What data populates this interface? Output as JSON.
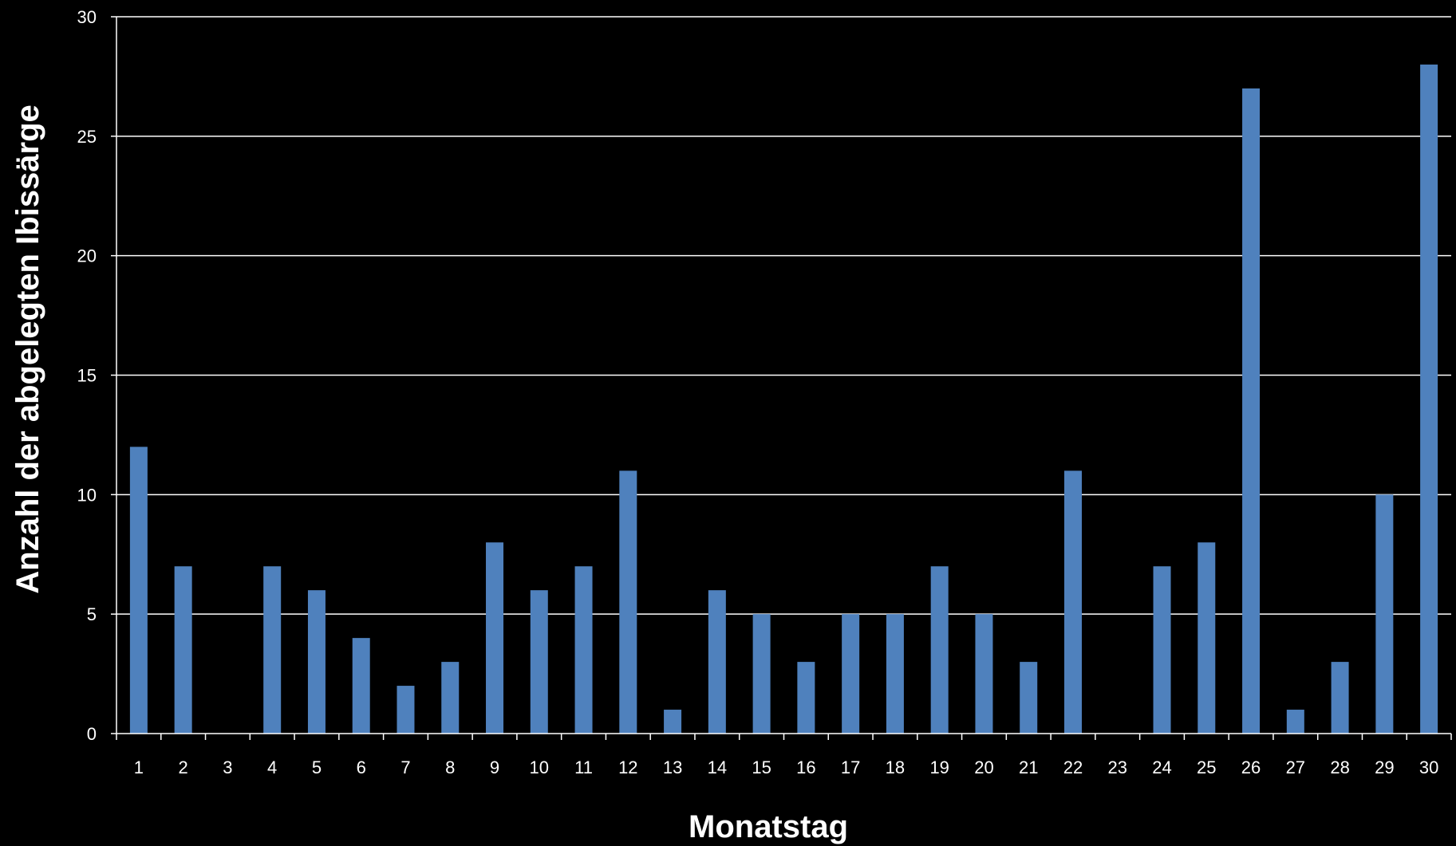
{
  "chart_data": {
    "type": "bar",
    "title": "",
    "xlabel": "Monatstag",
    "ylabel": "Anzahl der abgelegten Ibissärge",
    "categories": [
      "1",
      "2",
      "3",
      "4",
      "5",
      "6",
      "7",
      "8",
      "9",
      "10",
      "11",
      "12",
      "13",
      "14",
      "15",
      "16",
      "17",
      "18",
      "19",
      "20",
      "21",
      "22",
      "23",
      "24",
      "25",
      "26",
      "27",
      "28",
      "29",
      "30"
    ],
    "values": [
      12,
      7,
      0,
      7,
      6,
      4,
      2,
      3,
      8,
      6,
      7,
      11,
      1,
      6,
      5,
      3,
      5,
      5,
      7,
      5,
      3,
      11,
      0,
      7,
      8,
      27,
      1,
      3,
      10,
      28
    ],
    "ylim": [
      0,
      30
    ],
    "yticks": [
      0,
      5,
      10,
      15,
      20,
      25,
      30
    ],
    "grid": true,
    "legend": "none",
    "colors": {
      "background": "#000000",
      "bar": "#4f81bd",
      "grid": "#ffffff",
      "axis": "#ffffff",
      "text": "#ffffff"
    }
  }
}
